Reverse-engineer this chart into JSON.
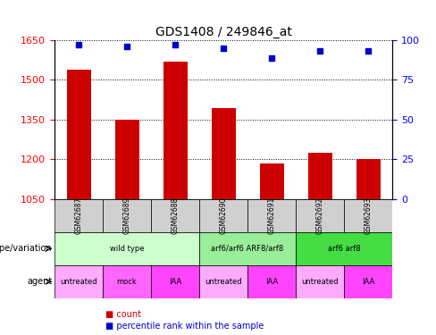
{
  "title": "GDS1408 / 249846_at",
  "samples": [
    "GSM62687",
    "GSM62689",
    "GSM62688",
    "GSM62690",
    "GSM62691",
    "GSM62692",
    "GSM62693"
  ],
  "bar_values": [
    1540,
    1350,
    1570,
    1395,
    1185,
    1225,
    1200
  ],
  "percentile_values": [
    97,
    96,
    97,
    95,
    89,
    93,
    93
  ],
  "ylim_left": [
    1050,
    1650
  ],
  "ylim_right": [
    0,
    100
  ],
  "yticks_left": [
    1050,
    1200,
    1350,
    1500,
    1650
  ],
  "yticks_right": [
    0,
    25,
    50,
    75,
    100
  ],
  "bar_color": "#cc0000",
  "dot_color": "#0000cc",
  "grid_color": "#000000",
  "background_color": "#ffffff",
  "genotype_groups": [
    {
      "label": "wild type",
      "start": 0,
      "end": 3,
      "color": "#ccffcc"
    },
    {
      "label": "arf6/arf6 ARF8/arf8",
      "start": 3,
      "end": 5,
      "color": "#99ee99"
    },
    {
      "label": "arf6 arf8",
      "start": 5,
      "end": 7,
      "color": "#44dd44"
    }
  ],
  "agent_groups": [
    {
      "label": "untreated",
      "start": 0,
      "end": 1,
      "color": "#ffaaff"
    },
    {
      "label": "mock",
      "start": 1,
      "end": 2,
      "color": "#ff66ff"
    },
    {
      "label": "IAA",
      "start": 2,
      "end": 3,
      "color": "#ff44ff"
    },
    {
      "label": "untreated",
      "start": 3,
      "end": 4,
      "color": "#ffaaff"
    },
    {
      "label": "IAA",
      "start": 4,
      "end": 5,
      "color": "#ff44ff"
    },
    {
      "label": "untreated",
      "start": 5,
      "end": 6,
      "color": "#ffaaff"
    },
    {
      "label": "IAA",
      "start": 6,
      "end": 7,
      "color": "#ff44ff"
    }
  ],
  "row_label_genotype": "genotype/variation",
  "row_label_agent": "agent",
  "legend_count_label": "count",
  "legend_pct_label": "percentile rank within the sample"
}
